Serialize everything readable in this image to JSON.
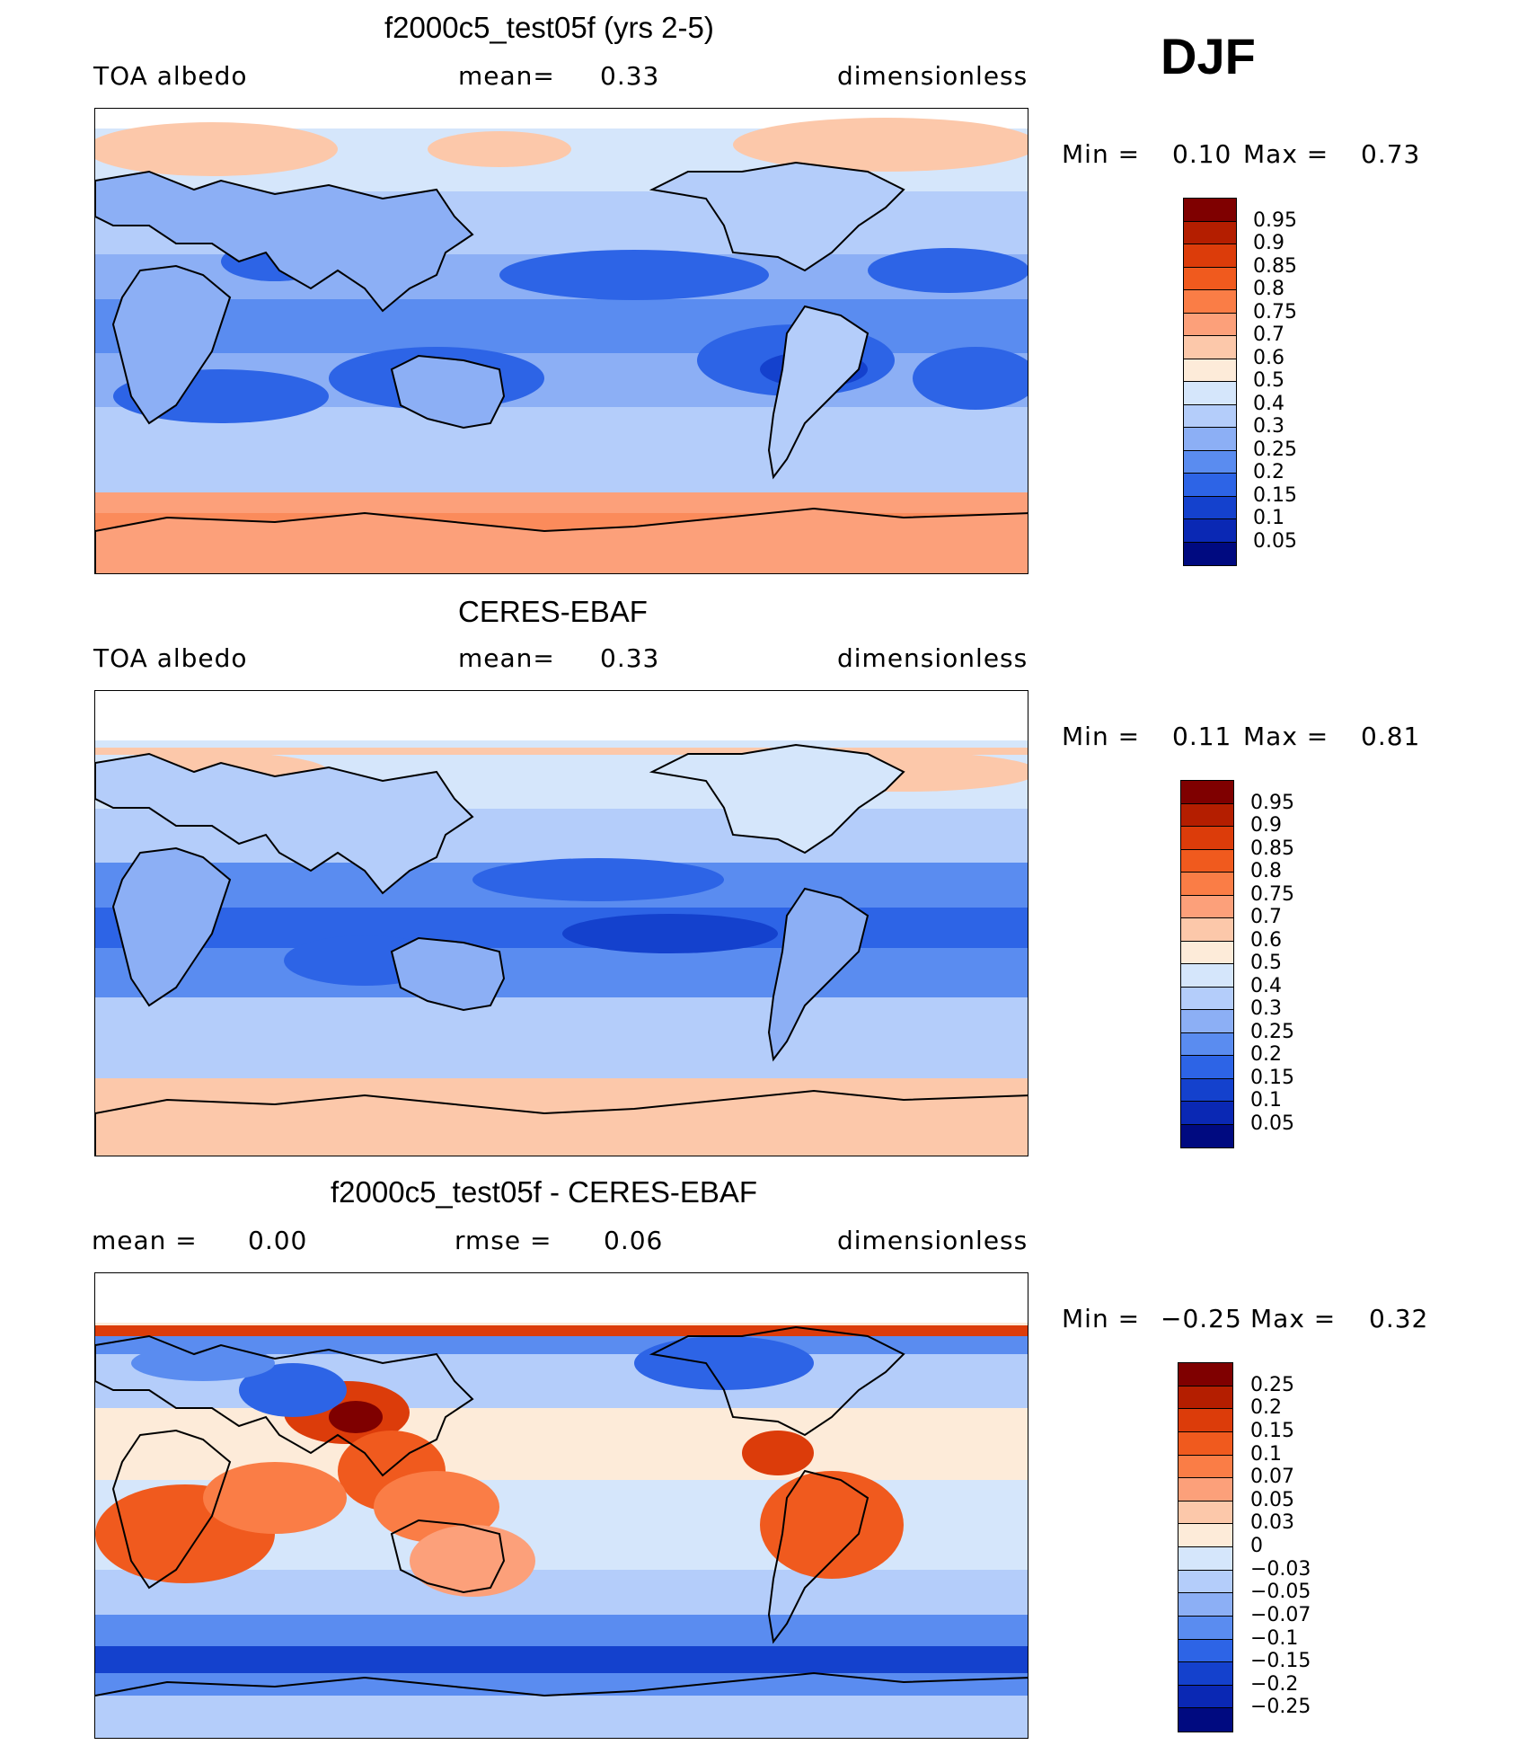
{
  "season": "DJF",
  "panels": [
    {
      "title": "f2000c5_test05f (yrs 2-5)",
      "left": "TOA  albedo",
      "center_label": "mean=",
      "center_value": "0.33",
      "right": "dimensionless",
      "min_label": "Min  =",
      "min_value": "0.10",
      "max_label": "Max  =",
      "max_value": "0.73",
      "colorbar_labels": [
        "0.95",
        "0.9",
        "0.85",
        "0.8",
        "0.75",
        "0.7",
        "0.6",
        "0.5",
        "0.4",
        "0.3",
        "0.25",
        "0.2",
        "0.15",
        "0.1",
        "0.05"
      ]
    },
    {
      "title": "CERES-EBAF",
      "left": "TOA  albedo",
      "center_label": "mean=",
      "center_value": "0.33",
      "right": "dimensionless",
      "min_label": "Min  =",
      "min_value": "0.11",
      "max_label": "Max  =",
      "max_value": "0.81",
      "colorbar_labels": [
        "0.95",
        "0.9",
        "0.85",
        "0.8",
        "0.75",
        "0.7",
        "0.6",
        "0.5",
        "0.4",
        "0.3",
        "0.25",
        "0.2",
        "0.15",
        "0.1",
        "0.05"
      ]
    },
    {
      "title": "f2000c5_test05f - CERES-EBAF",
      "left_label": "mean  =",
      "left_value": "0.00",
      "center_label": "rmse  =",
      "center_value": "0.06",
      "right": "dimensionless",
      "min_label": "Min  =",
      "min_value": "−0.25",
      "max_label": "Max  =",
      "max_value": "0.32",
      "colorbar_labels": [
        "0.25",
        "0.2",
        "0.15",
        "0.1",
        "0.07",
        "0.05",
        "0.03",
        "0",
        "−0.03",
        "−0.05",
        "−0.07",
        "−0.1",
        "−0.15",
        "−0.2",
        "−0.25"
      ]
    }
  ],
  "colors": {
    "abs_scale": [
      "#7f0000",
      "#b41e00",
      "#dc3c0a",
      "#f05a1e",
      "#fa7d46",
      "#fca07a",
      "#fcc8aa",
      "#fdebd9",
      "#d5e6fb",
      "#b4cdfa",
      "#8caff5",
      "#5a8cf0",
      "#2d64e6",
      "#1441cd",
      "#0a28b4",
      "#000a80"
    ],
    "diff_scale": [
      "#7f0000",
      "#b41e00",
      "#dc3c0a",
      "#f05a1e",
      "#fa7d46",
      "#fca07a",
      "#fcc8aa",
      "#fdebd9",
      "#d5e6fb",
      "#b4cdfa",
      "#8caff5",
      "#5a8cf0",
      "#2d64e6",
      "#1441cd",
      "#0a28b4",
      "#000a80"
    ]
  }
}
